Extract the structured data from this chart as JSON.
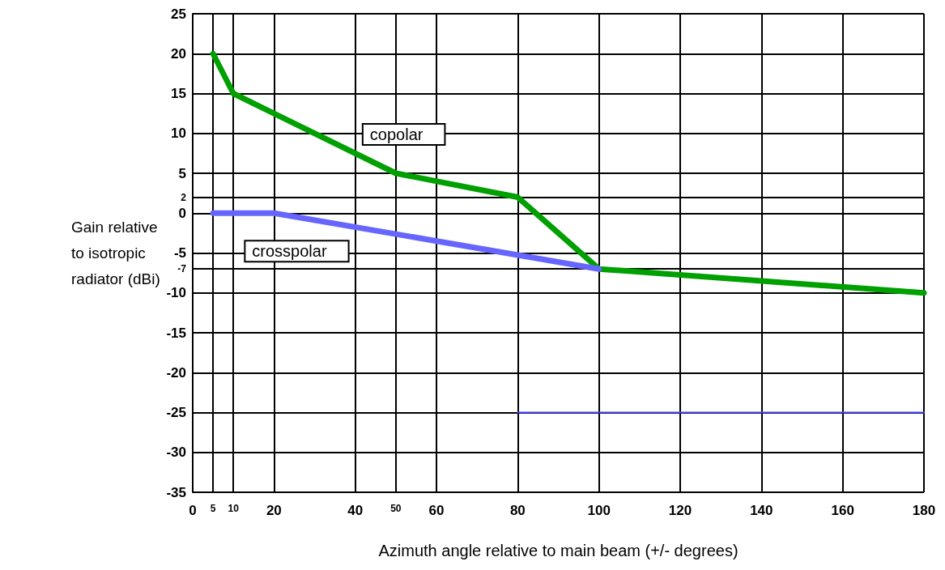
{
  "chart_data": {
    "type": "line",
    "xlabel": "Azimuth angle relative to main beam (+/- degrees)",
    "ylabel": "Gain relative\nto isotropic\nradiator (dBi)",
    "xlim": [
      0,
      180
    ],
    "xticks": [
      0,
      5,
      10,
      20,
      40,
      50,
      60,
      80,
      100,
      120,
      140,
      160,
      180
    ],
    "ylim": [
      -35,
      25
    ],
    "yticks": [
      -35,
      -30,
      -25,
      -20,
      -15,
      -10,
      -7,
      -5,
      0,
      2,
      5,
      10,
      15,
      20,
      25
    ],
    "grid": true,
    "legend": false,
    "marker": "none",
    "line_style": "solid",
    "series": [
      {
        "name": "copolar",
        "color": "#00a000",
        "x": [
          5,
          10,
          20,
          50,
          80,
          100,
          180
        ],
        "values": [
          20,
          15,
          12.5,
          5,
          2,
          -7,
          -10
        ]
      },
      {
        "name": "crosspolar",
        "color": "#6666ff",
        "x": [
          5,
          20,
          100
        ],
        "values": [
          0,
          0,
          -7
        ]
      },
      {
        "color": "#4444ff",
        "x": [
          80,
          180
        ],
        "values": [
          -25,
          -25
        ]
      }
    ]
  }
}
